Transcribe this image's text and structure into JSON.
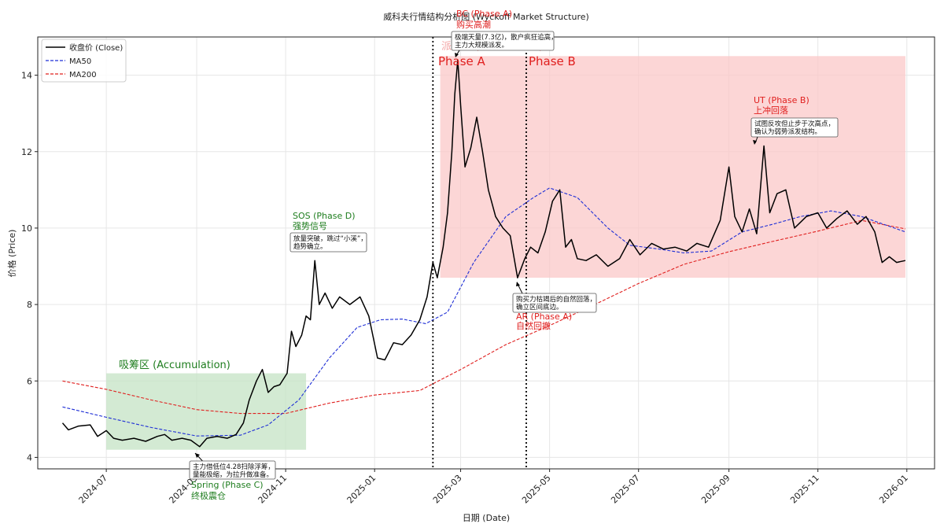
{
  "chart_data": {
    "type": "line",
    "title": "威科夫行情结构分析图 (Wyckoff Market Structure)",
    "xlabel": "日期 (Date)",
    "ylabel": "价格 (Price)",
    "xlim": [
      "2024-05-15",
      "2026-01-20"
    ],
    "ylim": [
      3.7,
      15.0
    ],
    "grid": true,
    "legend_position": "top-left",
    "x_ticks": [
      "2024-07",
      "2024-09",
      "2024-11",
      "2025-01",
      "2025-03",
      "2025-05",
      "2025-07",
      "2025-09",
      "2025-11",
      "2026-01"
    ],
    "y_ticks": [
      4,
      6,
      8,
      10,
      12,
      14
    ],
    "series": [
      {
        "name": "收盘价 (Close)",
        "style": "solid",
        "color": "#000000",
        "points": [
          [
            "2024-06-01",
            4.9
          ],
          [
            "2024-06-05",
            4.72
          ],
          [
            "2024-06-12",
            4.82
          ],
          [
            "2024-06-20",
            4.85
          ],
          [
            "2024-06-25",
            4.55
          ],
          [
            "2024-07-01",
            4.7
          ],
          [
            "2024-07-06",
            4.5
          ],
          [
            "2024-07-12",
            4.45
          ],
          [
            "2024-07-20",
            4.5
          ],
          [
            "2024-07-28",
            4.42
          ],
          [
            "2024-08-05",
            4.55
          ],
          [
            "2024-08-10",
            4.6
          ],
          [
            "2024-08-15",
            4.45
          ],
          [
            "2024-08-22",
            4.5
          ],
          [
            "2024-08-28",
            4.45
          ],
          [
            "2024-09-03",
            4.28
          ],
          [
            "2024-09-08",
            4.5
          ],
          [
            "2024-09-15",
            4.55
          ],
          [
            "2024-09-22",
            4.5
          ],
          [
            "2024-09-28",
            4.6
          ],
          [
            "2024-10-03",
            4.9
          ],
          [
            "2024-10-07",
            5.5
          ],
          [
            "2024-10-12",
            6.0
          ],
          [
            "2024-10-16",
            6.3
          ],
          [
            "2024-10-20",
            5.7
          ],
          [
            "2024-10-24",
            5.85
          ],
          [
            "2024-10-28",
            5.9
          ],
          [
            "2024-11-02",
            6.2
          ],
          [
            "2024-11-05",
            7.3
          ],
          [
            "2024-11-08",
            6.9
          ],
          [
            "2024-11-12",
            7.2
          ],
          [
            "2024-11-15",
            7.7
          ],
          [
            "2024-11-18",
            7.6
          ],
          [
            "2024-11-21",
            9.15
          ],
          [
            "2024-11-24",
            8.0
          ],
          [
            "2024-11-28",
            8.3
          ],
          [
            "2024-12-03",
            7.9
          ],
          [
            "2024-12-08",
            8.2
          ],
          [
            "2024-12-15",
            8.0
          ],
          [
            "2024-12-22",
            8.2
          ],
          [
            "2024-12-28",
            7.7
          ],
          [
            "2025-01-03",
            6.6
          ],
          [
            "2025-01-08",
            6.55
          ],
          [
            "2025-01-14",
            7.0
          ],
          [
            "2025-01-20",
            6.95
          ],
          [
            "2025-01-26",
            7.2
          ],
          [
            "2025-02-01",
            7.6
          ],
          [
            "2025-02-06",
            8.2
          ],
          [
            "2025-02-10",
            9.1
          ],
          [
            "2025-02-13",
            8.7
          ],
          [
            "2025-02-17",
            9.5
          ],
          [
            "2025-02-20",
            10.4
          ],
          [
            "2025-02-23",
            12.0
          ],
          [
            "2025-02-25",
            13.5
          ],
          [
            "2025-02-27",
            14.4
          ],
          [
            "2025-03-01",
            13.2
          ],
          [
            "2025-03-04",
            11.6
          ],
          [
            "2025-03-08",
            12.1
          ],
          [
            "2025-03-12",
            12.9
          ],
          [
            "2025-03-16",
            12.0
          ],
          [
            "2025-03-20",
            11.0
          ],
          [
            "2025-03-25",
            10.3
          ],
          [
            "2025-03-30",
            10.0
          ],
          [
            "2025-04-04",
            9.8
          ],
          [
            "2025-04-09",
            8.7
          ],
          [
            "2025-04-14",
            9.2
          ],
          [
            "2025-04-18",
            9.5
          ],
          [
            "2025-04-23",
            9.35
          ],
          [
            "2025-04-28",
            9.9
          ],
          [
            "2025-05-03",
            10.7
          ],
          [
            "2025-05-08",
            11.0
          ],
          [
            "2025-05-12",
            9.5
          ],
          [
            "2025-05-16",
            9.7
          ],
          [
            "2025-05-20",
            9.2
          ],
          [
            "2025-05-26",
            9.15
          ],
          [
            "2025-06-02",
            9.3
          ],
          [
            "2025-06-10",
            9.0
          ],
          [
            "2025-06-18",
            9.2
          ],
          [
            "2025-06-25",
            9.7
          ],
          [
            "2025-07-02",
            9.3
          ],
          [
            "2025-07-10",
            9.6
          ],
          [
            "2025-07-18",
            9.45
          ],
          [
            "2025-07-26",
            9.5
          ],
          [
            "2025-08-03",
            9.4
          ],
          [
            "2025-08-10",
            9.6
          ],
          [
            "2025-08-18",
            9.5
          ],
          [
            "2025-08-26",
            10.2
          ],
          [
            "2025-09-01",
            11.6
          ],
          [
            "2025-09-05",
            10.3
          ],
          [
            "2025-09-10",
            9.9
          ],
          [
            "2025-09-15",
            10.5
          ],
          [
            "2025-09-20",
            9.85
          ],
          [
            "2025-09-25",
            12.15
          ],
          [
            "2025-09-29",
            10.4
          ],
          [
            "2025-10-04",
            10.9
          ],
          [
            "2025-10-10",
            11.0
          ],
          [
            "2025-10-16",
            10.0
          ],
          [
            "2025-10-24",
            10.3
          ],
          [
            "2025-11-01",
            10.4
          ],
          [
            "2025-11-07",
            10.0
          ],
          [
            "2025-11-14",
            10.25
          ],
          [
            "2025-11-21",
            10.45
          ],
          [
            "2025-11-28",
            10.1
          ],
          [
            "2025-12-04",
            10.3
          ],
          [
            "2025-12-10",
            9.9
          ],
          [
            "2025-12-15",
            9.1
          ],
          [
            "2025-12-20",
            9.25
          ],
          [
            "2025-12-25",
            9.1
          ],
          [
            "2025-12-31",
            9.15
          ]
        ]
      },
      {
        "name": "MA50",
        "style": "dashed",
        "color": "#1f2fd6",
        "points": [
          [
            "2024-06-01",
            5.32
          ],
          [
            "2024-07-01",
            5.05
          ],
          [
            "2024-08-01",
            4.78
          ],
          [
            "2024-09-01",
            4.56
          ],
          [
            "2024-10-01",
            4.58
          ],
          [
            "2024-10-20",
            4.85
          ],
          [
            "2024-11-10",
            5.5
          ],
          [
            "2024-12-01",
            6.6
          ],
          [
            "2024-12-20",
            7.4
          ],
          [
            "2025-01-05",
            7.6
          ],
          [
            "2025-01-20",
            7.62
          ],
          [
            "2025-02-05",
            7.5
          ],
          [
            "2025-02-20",
            7.8
          ],
          [
            "2025-03-10",
            9.1
          ],
          [
            "2025-04-01",
            10.3
          ],
          [
            "2025-04-20",
            10.8
          ],
          [
            "2025-05-01",
            11.05
          ],
          [
            "2025-05-20",
            10.8
          ],
          [
            "2025-06-10",
            10.0
          ],
          [
            "2025-06-25",
            9.55
          ],
          [
            "2025-07-15",
            9.45
          ],
          [
            "2025-08-01",
            9.35
          ],
          [
            "2025-08-20",
            9.4
          ],
          [
            "2025-09-10",
            9.9
          ],
          [
            "2025-10-01",
            10.1
          ],
          [
            "2025-10-20",
            10.3
          ],
          [
            "2025-11-10",
            10.45
          ],
          [
            "2025-12-01",
            10.3
          ],
          [
            "2025-12-31",
            9.9
          ]
        ]
      },
      {
        "name": "MA200",
        "style": "dashed",
        "color": "#e0201f",
        "points": [
          [
            "2024-06-01",
            6.0
          ],
          [
            "2024-07-01",
            5.78
          ],
          [
            "2024-08-01",
            5.5
          ],
          [
            "2024-09-01",
            5.25
          ],
          [
            "2024-10-01",
            5.15
          ],
          [
            "2024-11-01",
            5.15
          ],
          [
            "2024-12-01",
            5.42
          ],
          [
            "2025-01-01",
            5.63
          ],
          [
            "2025-02-01",
            5.75
          ],
          [
            "2025-03-01",
            6.3
          ],
          [
            "2025-04-01",
            6.95
          ],
          [
            "2025-05-01",
            7.45
          ],
          [
            "2025-06-01",
            8.0
          ],
          [
            "2025-07-01",
            8.55
          ],
          [
            "2025-08-01",
            9.05
          ],
          [
            "2025-09-01",
            9.38
          ],
          [
            "2025-10-01",
            9.65
          ],
          [
            "2025-11-01",
            9.92
          ],
          [
            "2025-12-01",
            10.2
          ],
          [
            "2025-12-31",
            9.98
          ]
        ]
      }
    ],
    "regions": [
      {
        "name": "accumulation",
        "x0": "2024-07-01",
        "x1": "2024-11-15",
        "y0": 4.2,
        "y1": 6.2,
        "color": "#c4e3c4"
      },
      {
        "name": "distribution",
        "x0": "2025-02-15",
        "x1": "2025-12-31",
        "y0": 8.7,
        "y1": 14.5,
        "color": "#fbc8c8"
      }
    ],
    "vlines": [
      "2025-02-10",
      "2025-04-15"
    ],
    "annotations": {
      "zones": {
        "accumulation": "吸筹区 (Accumulation)",
        "distribution": "派发区 (Distribution)"
      },
      "phases": {
        "phase_a": "Phase A",
        "phase_b": "Phase B"
      },
      "events": [
        {
          "id": "spring",
          "date": "2024-09-03",
          "price": 4.28,
          "title": "Spring (Phase C)",
          "subtitle": "终极震仓",
          "note": [
            "主力借低位4.28扫除浮筹，",
            "量能极缩，为拉升做准备。"
          ],
          "color": "green"
        },
        {
          "id": "sos",
          "date": "2024-11-21",
          "price": 9.15,
          "title": "SOS (Phase D)",
          "subtitle": "强势信号",
          "note": [
            "放量突破，跳过“小溪”，",
            "趋势确立。"
          ],
          "color": "green"
        },
        {
          "id": "bc",
          "date": "2025-02-27",
          "price": 14.4,
          "title": "BC (Phase A)",
          "subtitle": "购买高潮",
          "note": [
            "极端天量(7.3亿)，散户疯狂追高，",
            "主力大规模派发。"
          ],
          "color": "red"
        },
        {
          "id": "ar",
          "date": "2025-04-09",
          "price": 8.7,
          "title": "AR (Phase A)",
          "subtitle": "自然回撤",
          "note": [
            "购买力枯竭后的自然回落，",
            "确立区间底边。"
          ],
          "color": "red"
        },
        {
          "id": "ut",
          "date": "2025-09-25",
          "price": 12.15,
          "title": "UT (Phase B)",
          "subtitle": "上冲回落",
          "note": [
            "试图反攻但止步于次高点，",
            "确认为弱势派发结构。"
          ],
          "color": "red"
        }
      ]
    }
  }
}
